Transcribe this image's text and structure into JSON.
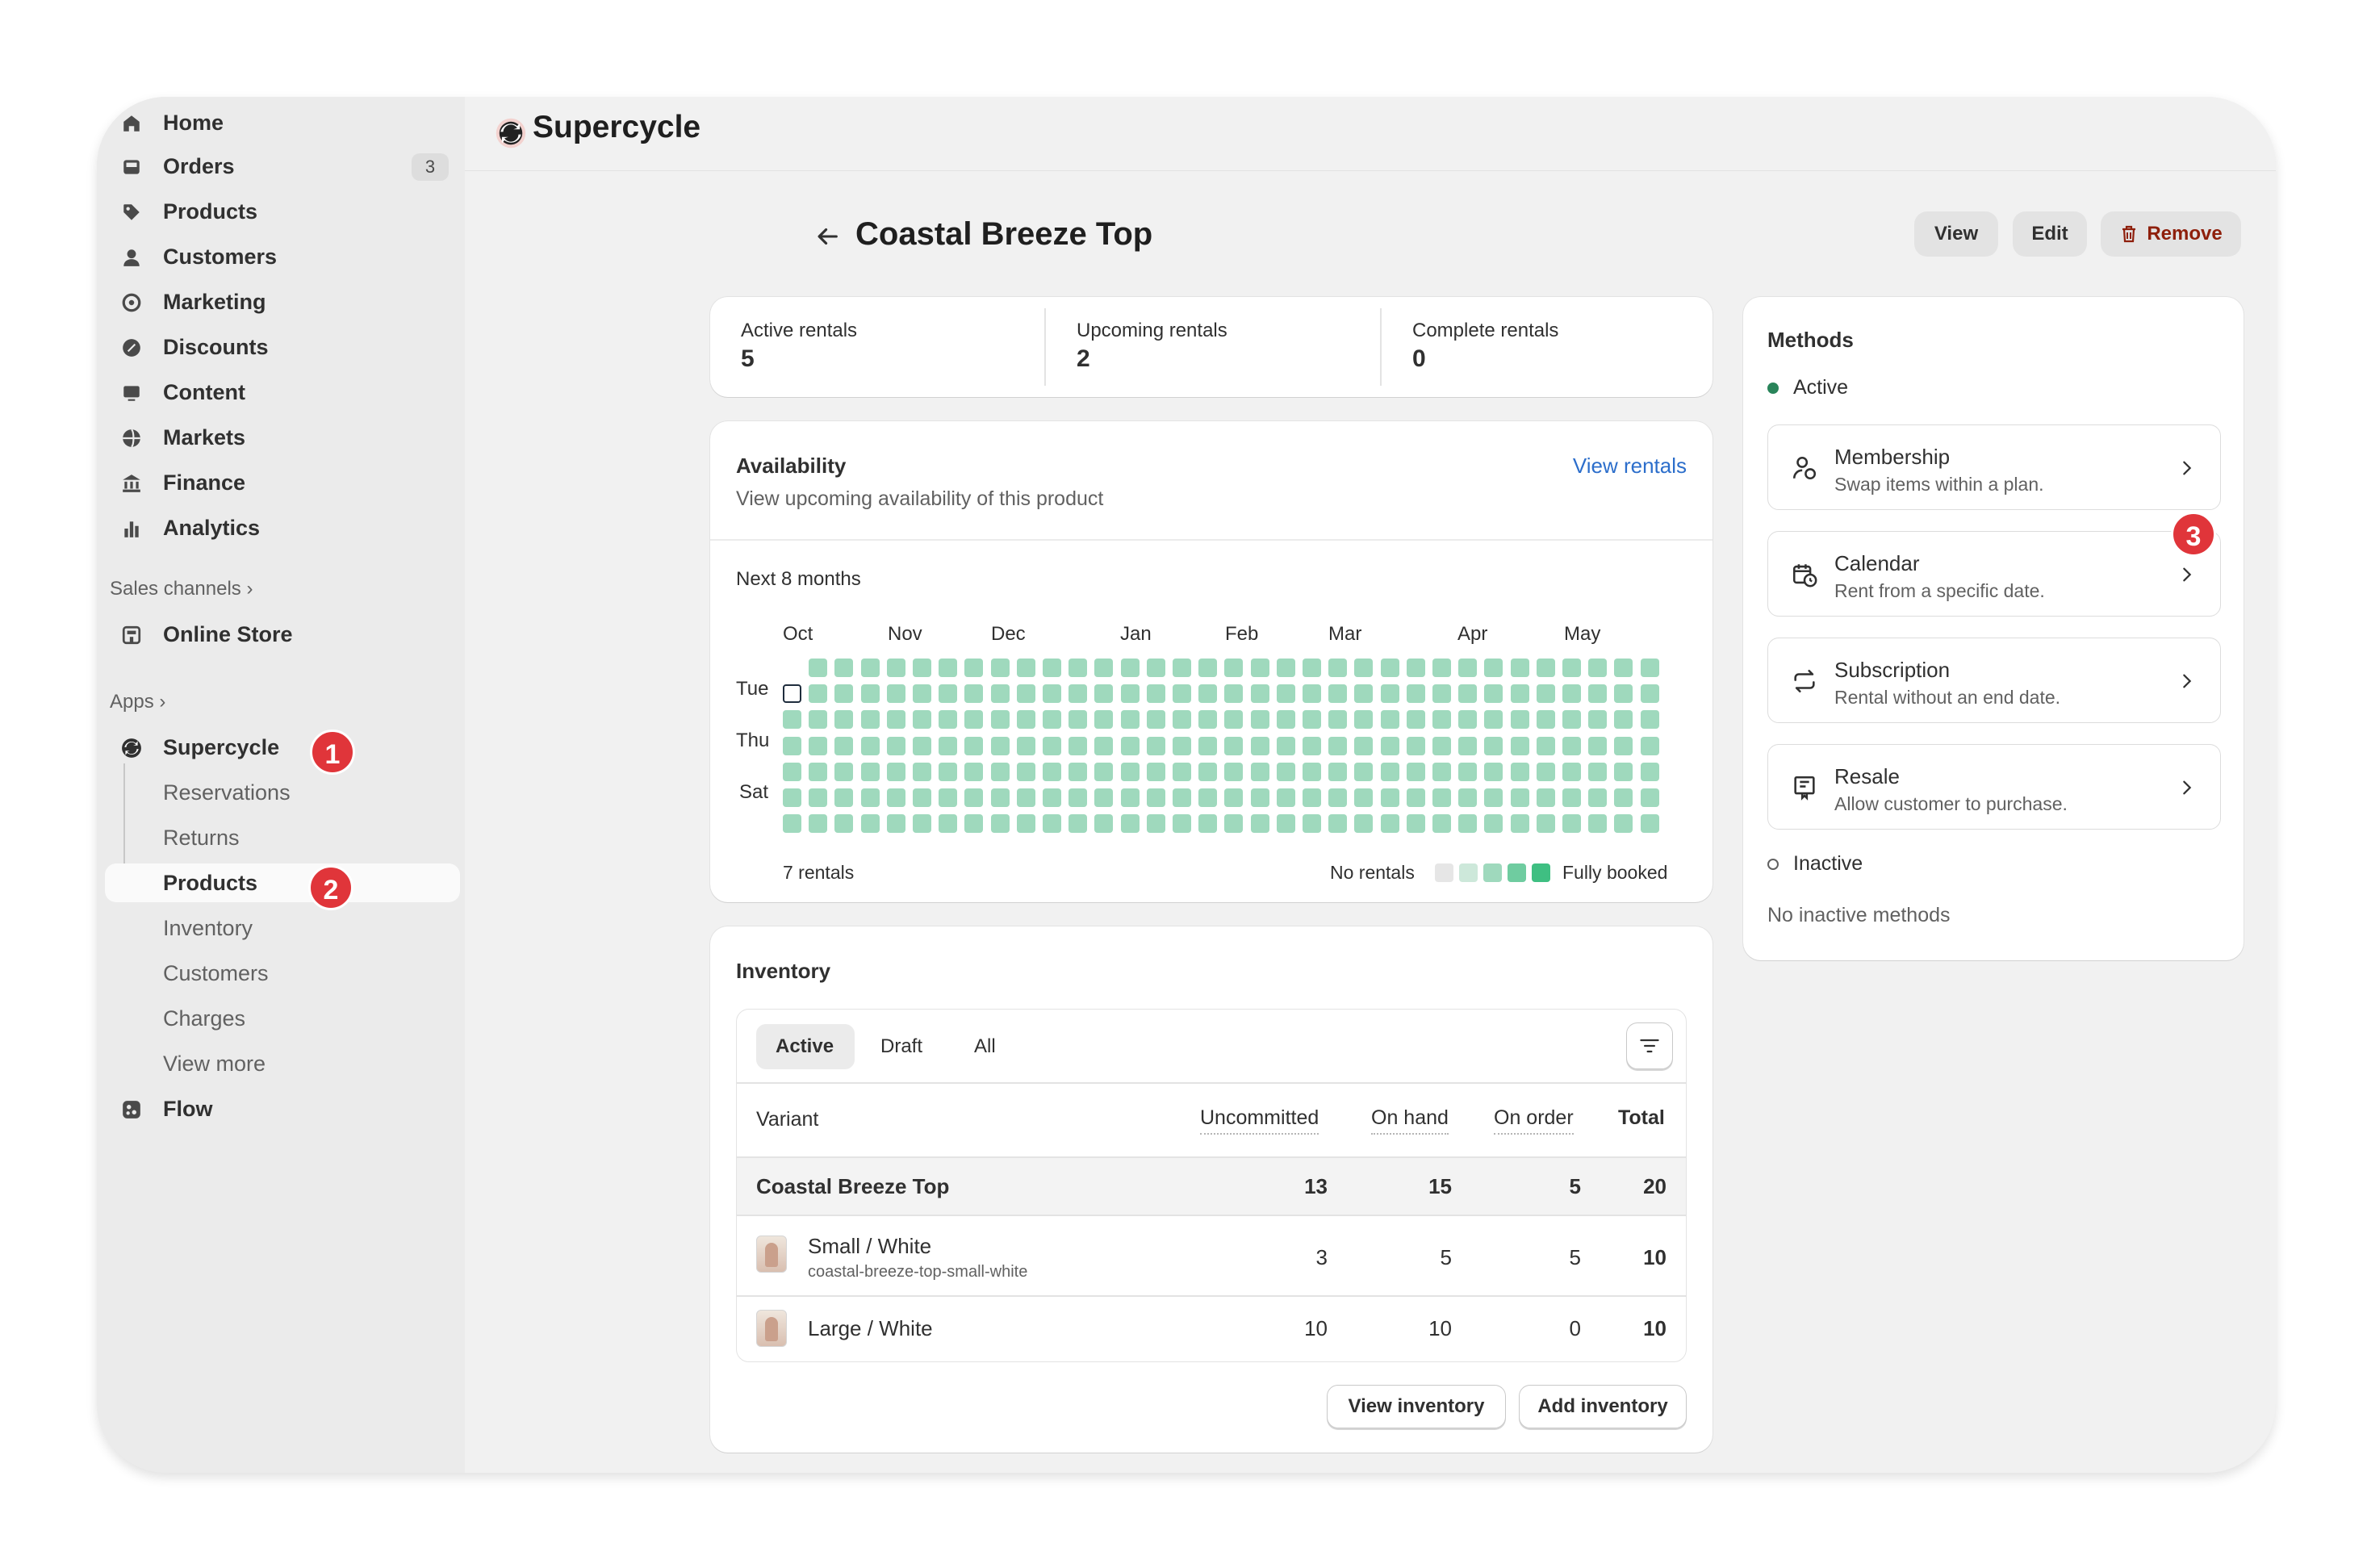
{
  "sidebar": {
    "items": [
      {
        "label": "Home",
        "icon": "home-icon"
      },
      {
        "label": "Orders",
        "icon": "inbox-icon",
        "badge": "3"
      },
      {
        "label": "Products",
        "icon": "tag-icon"
      },
      {
        "label": "Customers",
        "icon": "person-icon"
      },
      {
        "label": "Marketing",
        "icon": "target-icon"
      },
      {
        "label": "Discounts",
        "icon": "discount-icon"
      },
      {
        "label": "Content",
        "icon": "content-icon"
      },
      {
        "label": "Markets",
        "icon": "globe-icon"
      },
      {
        "label": "Finance",
        "icon": "bank-icon"
      },
      {
        "label": "Analytics",
        "icon": "chart-bars-icon"
      }
    ],
    "sales_channels_label": "Sales channels",
    "online_store_label": "Online Store",
    "apps_label": "Apps",
    "app": {
      "label": "Supercycle",
      "subitems": [
        "Reservations",
        "Returns",
        "Products",
        "Inventory",
        "Customers",
        "Charges",
        "View more"
      ]
    },
    "flow_label": "Flow",
    "steps": [
      "1",
      "2",
      "3"
    ]
  },
  "topbar": {
    "app_name": "Supercycle"
  },
  "page": {
    "title": "Coastal Breeze Top",
    "actions": {
      "view": "View",
      "edit": "Edit",
      "remove": "Remove"
    }
  },
  "stats": [
    {
      "label": "Active rentals",
      "value": "5"
    },
    {
      "label": "Upcoming rentals",
      "value": "2"
    },
    {
      "label": "Complete rentals",
      "value": "0"
    }
  ],
  "availability": {
    "title": "Availability",
    "subtitle": "View upcoming availability of this product",
    "link": "View rentals",
    "range_label": "Next 8 months",
    "months": [
      "Oct",
      "Nov",
      "Dec",
      "Jan",
      "Feb",
      "Mar",
      "Apr",
      "May"
    ],
    "days": [
      "Tue",
      "Thu",
      "Sat"
    ],
    "rentals_count": "7 rentals",
    "legend_low": "No rentals",
    "legend_high": "Fully booked",
    "legend_colors": [
      "#e6e6e6",
      "#cde8da",
      "#9fd9bd",
      "#6fcca0",
      "#3fbf82"
    ],
    "cell_color": "#9fd9bd",
    "weeks": 34,
    "rows": 7
  },
  "inventory": {
    "title": "Inventory",
    "tabs": [
      "Active",
      "Draft",
      "All"
    ],
    "columns": [
      "Variant",
      "Uncommitted",
      "On hand",
      "On order",
      "Total"
    ],
    "product_row": {
      "name": "Coastal Breeze Top",
      "uncommitted": "13",
      "on_hand": "15",
      "on_order": "5",
      "total": "20"
    },
    "variants": [
      {
        "name": "Small / White",
        "sku": "coastal-breeze-top-small-white",
        "uncommitted": "3",
        "on_hand": "5",
        "on_order": "5",
        "total": "10"
      },
      {
        "name": "Large / White",
        "sku": "",
        "uncommitted": "10",
        "on_hand": "10",
        "on_order": "0",
        "total": "10"
      }
    ],
    "view_button": "View inventory",
    "add_button": "Add inventory"
  },
  "methods": {
    "title": "Methods",
    "active_label": "Active",
    "inactive_label": "Inactive",
    "no_inactive": "No inactive methods",
    "items": [
      {
        "title": "Membership",
        "desc": "Swap items within a plan.",
        "icon": "membership-icon"
      },
      {
        "title": "Calendar",
        "desc": "Rent from a specific date.",
        "icon": "calendar-clock-icon"
      },
      {
        "title": "Subscription",
        "desc": "Rental without an end date.",
        "icon": "repeat-icon"
      },
      {
        "title": "Resale",
        "desc": "Allow customer to purchase.",
        "icon": "receipt-icon"
      }
    ]
  },
  "colors": {
    "accent_red": "#e0353a",
    "remove_red": "#8e1f0b",
    "link_blue": "#2c6ecb",
    "active_dot": "#29845a"
  }
}
